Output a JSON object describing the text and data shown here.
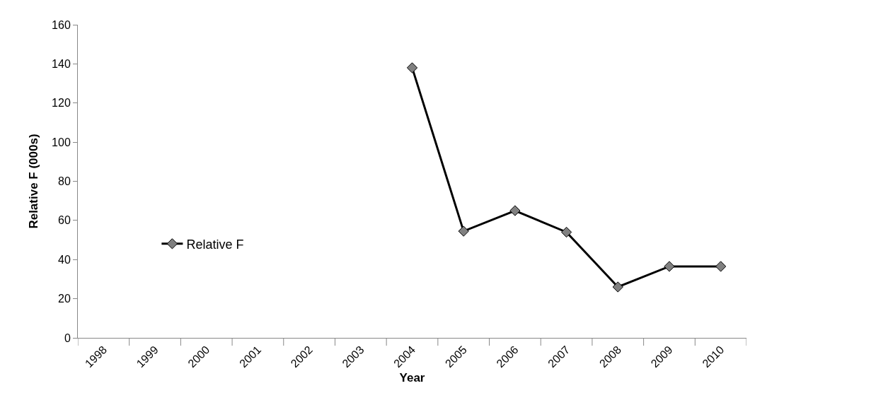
{
  "chart_data": {
    "type": "line",
    "xlabel": "Year",
    "ylabel": "Relative F (000s)",
    "categories": [
      "1998",
      "1999",
      "2000",
      "2001",
      "2002",
      "2003",
      "2004",
      "2005",
      "2006",
      "2007",
      "2008",
      "2009",
      "2010"
    ],
    "series": [
      {
        "name": "Relative F",
        "color": "#000000",
        "values": [
          null,
          null,
          null,
          null,
          null,
          null,
          138,
          54.5,
          65,
          54,
          26,
          36.5,
          36.5
        ]
      }
    ],
    "ylim": [
      0,
      160
    ],
    "yticks": [
      0,
      20,
      40,
      60,
      80,
      100,
      120,
      140,
      160
    ],
    "legend": "left",
    "marker": "diamond",
    "line_style": "solid"
  }
}
